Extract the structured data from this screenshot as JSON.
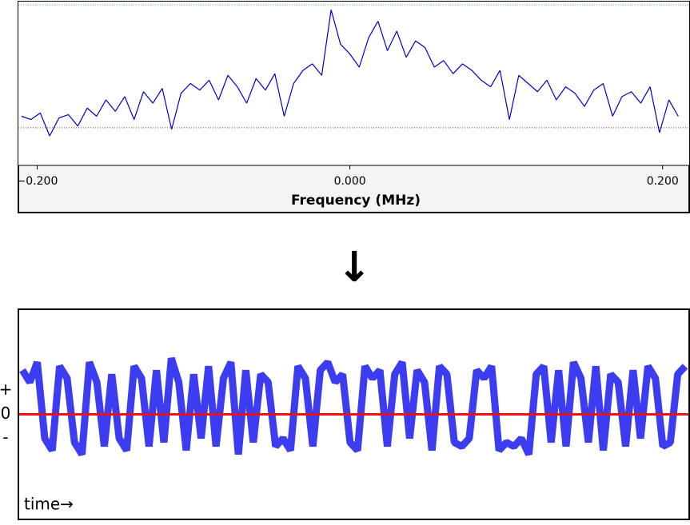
{
  "chart_data": [
    {
      "type": "line",
      "x_label": "Frequency (MHz)",
      "x": [
        -0.21,
        -0.204,
        -0.198,
        -0.192,
        -0.186,
        -0.18,
        -0.174,
        -0.168,
        -0.162,
        -0.156,
        -0.15,
        -0.144,
        -0.138,
        -0.132,
        -0.126,
        -0.12,
        -0.114,
        -0.108,
        -0.102,
        -0.096,
        -0.09,
        -0.084,
        -0.078,
        -0.072,
        -0.066,
        -0.06,
        -0.054,
        -0.048,
        -0.042,
        -0.036,
        -0.03,
        -0.024,
        -0.018,
        -0.012,
        -0.006,
        0,
        0.006,
        0.012,
        0.018,
        0.024,
        0.03,
        0.036,
        0.042,
        0.048,
        0.054,
        0.06,
        0.066,
        0.072,
        0.078,
        0.084,
        0.09,
        0.096,
        0.102,
        0.108,
        0.114,
        0.12,
        0.126,
        0.132,
        0.138,
        0.144,
        0.15,
        0.156,
        0.162,
        0.168,
        0.174,
        0.18,
        0.186,
        0.192,
        0.198,
        0.204,
        0.21
      ],
      "series": [
        {
          "color": "#0000cc",
          "values": [
            30,
            28,
            32,
            18,
            29,
            31,
            24,
            35,
            30,
            40,
            33,
            42,
            28,
            45,
            38,
            47,
            22,
            44,
            50,
            46,
            52,
            40,
            55,
            48,
            38,
            53,
            46,
            56,
            30,
            50,
            58,
            62,
            55,
            95,
            74,
            68,
            60,
            78,
            88,
            70,
            82,
            66,
            76,
            72,
            60,
            64,
            56,
            62,
            58,
            52,
            48,
            58,
            28,
            55,
            50,
            45,
            52,
            40,
            48,
            44,
            36,
            46,
            50,
            30,
            42,
            45,
            38,
            48,
            20,
            40,
            30
          ]
        }
      ],
      "xlim": [
        -0.212,
        0.217
      ],
      "ylim": [
        0,
        100
      ],
      "xticks": [
        {
          "value": -0.2,
          "label": "−0.200"
        },
        {
          "value": 0,
          "label": "0.000"
        },
        {
          "value": 0.2,
          "label": "0.200"
        }
      ],
      "hlines": [
        {
          "value": 98,
          "color": "#33cc33"
        },
        {
          "value": 23,
          "color": "#cc3333"
        }
      ]
    },
    {
      "type": "line",
      "annotation": "time→",
      "series": [
        {
          "color": "#1a1aee",
          "values": [
            1.1,
            0.8,
            1.3,
            -0.6,
            -0.9,
            1.2,
            0.9,
            -0.7,
            -1.0,
            1.3,
            0.8,
            -0.8,
            1.0,
            -0.6,
            -0.9,
            1.2,
            0.9,
            -0.8,
            1.1,
            -0.7,
            1.4,
            0.8,
            -0.9,
            1.0,
            -0.6,
            1.2,
            -0.8,
            0.9,
            1.3,
            -1.0,
            1.1,
            -0.7,
            1.0,
            0.8,
            -0.8,
            -0.6,
            -0.9,
            1.2,
            0.9,
            -0.8,
            1.1,
            1.3,
            0.8,
            1.0,
            -0.7,
            -0.9,
            1.2,
            0.9,
            1.1,
            -0.8,
            1.0,
            1.3,
            -0.6,
            1.1,
            0.8,
            -0.9,
            1.2,
            1.0,
            -0.7,
            -0.8,
            -0.6,
            1.1,
            0.9,
            1.2,
            -0.9,
            -0.7,
            -0.8,
            -0.6,
            -1.0,
            1.0,
            1.2,
            -0.7,
            1.1,
            -0.8,
            1.3,
            0.9,
            -0.7,
            1.2,
            -0.9,
            1.0,
            0.8,
            -0.8,
            1.1,
            -0.6,
            1.2,
            0.9,
            -0.8,
            -0.7,
            1.0,
            1.2
          ]
        }
      ],
      "ylim": [
        -2.6,
        2.6
      ],
      "yticks": [
        {
          "value": 0.6,
          "label": "+"
        },
        {
          "value": 0,
          "label": "0"
        },
        {
          "value": -0.6,
          "label": "-"
        }
      ],
      "zero_line_color": "#ee1111"
    }
  ]
}
